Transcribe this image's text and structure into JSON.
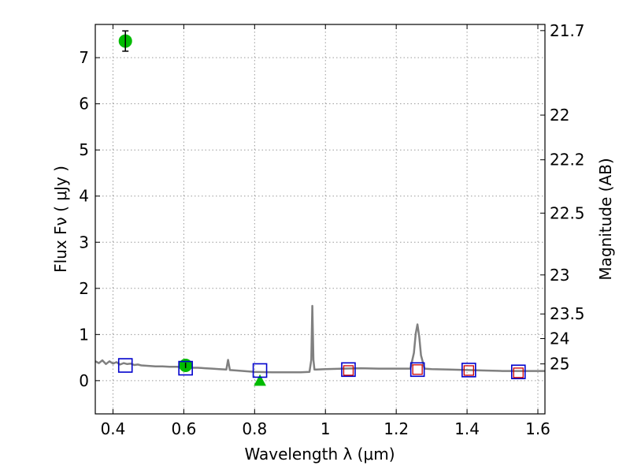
{
  "chart_data": {
    "type": "scatter",
    "xlabel": "Wavelength  λ (μm)",
    "ylabel": "Flux  Fν  ( μJy )",
    "ylabel_right": "Magnitude (AB)",
    "xlim": [
      0.35,
      1.62
    ],
    "ylim": [
      -0.72,
      7.72
    ],
    "grid": true,
    "x_ticks": [
      0.4,
      0.6,
      0.8,
      1.0,
      1.2,
      1.4,
      1.6
    ],
    "x_tick_labels": [
      "0.4",
      "0.6",
      "0.8",
      "1",
      "1.2",
      "1.4",
      "1.6"
    ],
    "y_ticks": [
      0,
      1,
      2,
      3,
      4,
      5,
      6,
      7
    ],
    "y_tick_labels": [
      "0",
      "1",
      "2",
      "3",
      "4",
      "5",
      "6",
      "7"
    ],
    "magnitude_ticks": [
      21.7,
      22,
      22.2,
      22.5,
      23,
      23.5,
      24,
      25
    ],
    "magnitude_tick_labels": [
      "21.7",
      "22",
      "22.2",
      "22.5",
      "23",
      "23.5",
      "24",
      "25"
    ],
    "colors": {
      "spectrum": "#808080",
      "observed": "#00bb00",
      "model_blue": "#0000cc",
      "model_red": "#cc0000"
    },
    "spectrum": {
      "x": [
        0.35,
        0.36,
        0.37,
        0.38,
        0.39,
        0.4,
        0.41,
        0.42,
        0.43,
        0.44,
        0.45,
        0.46,
        0.47,
        0.48,
        0.5,
        0.52,
        0.54,
        0.56,
        0.58,
        0.6,
        0.62,
        0.64,
        0.66,
        0.68,
        0.7,
        0.72,
        0.725,
        0.73,
        0.75,
        0.8,
        0.85,
        0.9,
        0.93,
        0.955,
        0.96,
        0.963,
        0.966,
        0.969,
        0.975,
        1.0,
        1.05,
        1.1,
        1.15,
        1.2,
        1.24,
        1.25,
        1.255,
        1.26,
        1.265,
        1.27,
        1.28,
        1.3,
        1.35,
        1.4,
        1.45,
        1.5,
        1.55,
        1.62
      ],
      "y": [
        0.42,
        0.38,
        0.44,
        0.36,
        0.42,
        0.37,
        0.4,
        0.35,
        0.38,
        0.36,
        0.37,
        0.34,
        0.35,
        0.33,
        0.32,
        0.31,
        0.31,
        0.3,
        0.3,
        0.29,
        0.28,
        0.28,
        0.27,
        0.26,
        0.25,
        0.24,
        0.45,
        0.23,
        0.22,
        0.19,
        0.18,
        0.18,
        0.18,
        0.19,
        0.45,
        1.62,
        0.45,
        0.24,
        0.24,
        0.25,
        0.26,
        0.27,
        0.26,
        0.26,
        0.26,
        0.6,
        1.02,
        1.22,
        0.95,
        0.55,
        0.26,
        0.25,
        0.24,
        0.23,
        0.22,
        0.21,
        0.21,
        0.21
      ]
    },
    "series": [
      {
        "marker": "circle",
        "points": [
          {
            "x": 0.435,
            "y": 7.36,
            "yerr": 0.22
          },
          {
            "x": 0.605,
            "y": 0.33,
            "yerr": 0.06
          }
        ]
      },
      {
        "marker": "triangle",
        "points": [
          {
            "x": 0.815,
            "y": 0.0
          }
        ]
      },
      {
        "marker": "square-open-blue",
        "points": [
          {
            "x": 0.435,
            "y": 0.33
          },
          {
            "x": 0.605,
            "y": 0.27
          },
          {
            "x": 0.815,
            "y": 0.22
          },
          {
            "x": 1.065,
            "y": 0.24
          },
          {
            "x": 1.26,
            "y": 0.24
          },
          {
            "x": 1.405,
            "y": 0.23
          },
          {
            "x": 1.545,
            "y": 0.19
          }
        ]
      },
      {
        "marker": "square-open-red",
        "points": [
          {
            "x": 1.065,
            "y": 0.22
          },
          {
            "x": 1.26,
            "y": 0.24
          },
          {
            "x": 1.405,
            "y": 0.22
          },
          {
            "x": 1.545,
            "y": 0.17
          }
        ]
      }
    ]
  }
}
